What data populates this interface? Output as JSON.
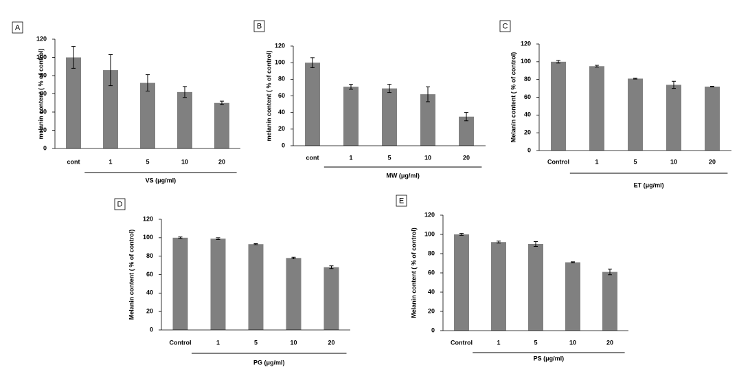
{
  "chart_data": [
    {
      "type": "bar",
      "panel": "A",
      "ylabel": "melanin content ( % of control)",
      "categories": [
        "cont",
        "1",
        "5",
        "10",
        "20"
      ],
      "group_label": "VS (μg/ml)",
      "values": [
        100,
        86,
        72,
        62,
        50
      ],
      "errors": [
        12,
        17,
        9,
        6,
        2
      ],
      "color": "#808080",
      "ylim": [
        0,
        120
      ],
      "yticks": [
        0,
        20,
        40,
        60,
        80,
        100,
        120
      ]
    },
    {
      "type": "bar",
      "panel": "B",
      "ylabel": "melanin content ( % of control)",
      "categories": [
        "cont",
        "1",
        "5",
        "10",
        "20"
      ],
      "group_label": "MW (μg/ml)",
      "values": [
        100,
        71,
        69,
        62,
        35
      ],
      "errors": [
        6,
        3,
        5,
        9,
        5
      ],
      "color": "#808080",
      "ylim": [
        0,
        120
      ],
      "yticks": [
        0,
        20,
        40,
        60,
        80,
        100,
        120
      ]
    },
    {
      "type": "bar",
      "panel": "C",
      "ylabel": "Melanin content ( % of control)",
      "categories": [
        "Control",
        "1",
        "5",
        "10",
        "20"
      ],
      "group_label": "ET (μg/ml)",
      "values": [
        100,
        95,
        81,
        74,
        72
      ],
      "errors": [
        1.5,
        1,
        0.5,
        4,
        0.3
      ],
      "color": "#808080",
      "ylim": [
        0,
        120
      ],
      "yticks": [
        0,
        20,
        40,
        60,
        80,
        100,
        120
      ]
    },
    {
      "type": "bar",
      "panel": "D",
      "ylabel": "Melanin content ( % of control)",
      "categories": [
        "Control",
        "1",
        "5",
        "10",
        "20"
      ],
      "group_label": "PG (μg/ml)",
      "values": [
        100,
        99,
        93,
        78,
        68
      ],
      "errors": [
        0.8,
        1,
        0.5,
        0.8,
        1.5
      ],
      "color": "#808080",
      "ylim": [
        0,
        120
      ],
      "yticks": [
        0,
        20,
        40,
        60,
        80,
        100,
        120
      ]
    },
    {
      "type": "bar",
      "panel": "E",
      "ylabel": "Melanin content ( % of control)",
      "categories": [
        "Control",
        "1",
        "5",
        "10",
        "20"
      ],
      "group_label": "PS (μg/ml)",
      "values": [
        100,
        92,
        90,
        71,
        61
      ],
      "errors": [
        1,
        1,
        2.5,
        0.5,
        3
      ],
      "color": "#808080",
      "ylim": [
        0,
        120
      ],
      "yticks": [
        0,
        20,
        40,
        60,
        80,
        100,
        120
      ]
    }
  ]
}
